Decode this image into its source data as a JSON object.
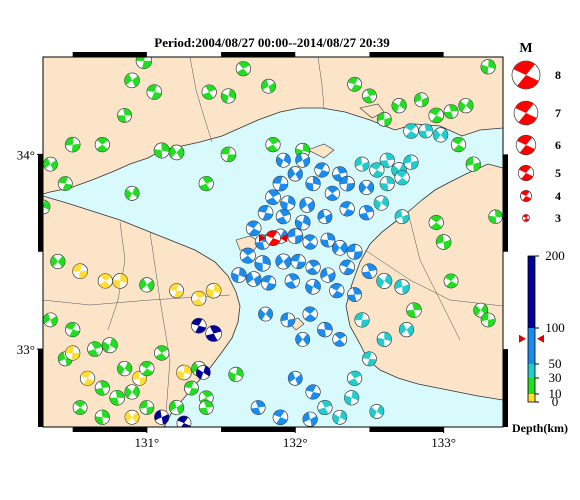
{
  "title": "Period:2004/08/27 00:00--2014/08/27 20:39",
  "map": {
    "lon_range": [
      130.3,
      133.4
    ],
    "lat_range": [
      32.6,
      34.5
    ],
    "x_ticks": [
      {
        "value": 131,
        "label": "131°"
      },
      {
        "value": 132,
        "label": "132°"
      },
      {
        "value": 133,
        "label": "133°"
      }
    ],
    "y_ticks": [
      {
        "value": 34,
        "label": "34°"
      },
      {
        "value": 33,
        "label": "33°"
      }
    ],
    "colors": {
      "land": "#fbe4c8",
      "sea": "#d8fafd",
      "coast": "#333333"
    },
    "selected_event": {
      "lon": 131.85,
      "lat": 33.57,
      "depth_km": 85,
      "magnitude": 6.1
    },
    "events": [
      [
        130.98,
        34.48,
        15,
        3.8
      ],
      [
        131.65,
        34.44,
        12,
        3.5
      ],
      [
        133.3,
        34.45,
        10,
        3.5
      ],
      [
        130.9,
        34.38,
        15,
        3.6
      ],
      [
        131.05,
        34.32,
        20,
        3.6
      ],
      [
        131.42,
        34.32,
        15,
        3.5
      ],
      [
        131.55,
        34.3,
        15,
        3.5
      ],
      [
        131.82,
        34.35,
        15,
        3.4
      ],
      [
        132.4,
        34.36,
        12,
        3.4
      ],
      [
        132.5,
        34.3,
        15,
        3.4
      ],
      [
        132.7,
        34.25,
        15,
        3.5
      ],
      [
        132.85,
        34.28,
        20,
        3.4
      ],
      [
        132.95,
        34.2,
        20,
        3.6
      ],
      [
        133.05,
        34.22,
        20,
        3.4
      ],
      [
        133.15,
        34.25,
        15,
        3.5
      ],
      [
        132.6,
        34.18,
        25,
        3.4
      ],
      [
        132.78,
        34.12,
        40,
        3.6
      ],
      [
        132.88,
        34.12,
        40,
        3.4
      ],
      [
        132.98,
        34.1,
        30,
        3.5
      ],
      [
        130.5,
        34.05,
        15,
        3.6
      ],
      [
        130.7,
        34.05,
        15,
        3.5
      ],
      [
        131.1,
        34.02,
        15,
        3.7
      ],
      [
        131.2,
        34.01,
        15,
        3.6
      ],
      [
        131.55,
        34.0,
        15,
        3.6
      ],
      [
        131.85,
        34.05,
        15,
        3.5
      ],
      [
        132.05,
        34.02,
        15,
        3.5
      ],
      [
        130.35,
        33.95,
        15,
        3.4
      ],
      [
        130.45,
        33.85,
        15,
        3.4
      ],
      [
        131.4,
        33.85,
        15,
        3.5
      ],
      [
        130.3,
        33.73,
        15,
        3.4
      ],
      [
        132.05,
        33.97,
        60,
        3.4
      ],
      [
        132.18,
        33.92,
        60,
        3.5
      ],
      [
        132.3,
        33.9,
        55,
        3.5
      ],
      [
        131.92,
        33.97,
        65,
        3.4
      ],
      [
        132.45,
        33.95,
        45,
        3.4
      ],
      [
        132.55,
        33.92,
        45,
        3.5
      ],
      [
        132.62,
        33.97,
        45,
        3.5
      ],
      [
        132.7,
        33.92,
        40,
        3.6
      ],
      [
        132.78,
        33.96,
        40,
        3.5
      ],
      [
        132.72,
        33.88,
        45,
        3.5
      ],
      [
        132.62,
        33.85,
        45,
        3.5
      ],
      [
        132.48,
        33.83,
        50,
        3.5
      ],
      [
        132.35,
        33.85,
        55,
        3.6
      ],
      [
        132.25,
        33.8,
        55,
        3.5
      ],
      [
        132.12,
        33.85,
        60,
        3.5
      ],
      [
        132.0,
        33.9,
        65,
        3.5
      ],
      [
        131.9,
        33.85,
        65,
        3.6
      ],
      [
        131.85,
        33.78,
        70,
        3.6
      ],
      [
        131.95,
        33.75,
        65,
        3.5
      ],
      [
        132.08,
        33.74,
        65,
        3.6
      ],
      [
        131.8,
        33.7,
        70,
        3.6
      ],
      [
        131.92,
        33.68,
        70,
        3.5
      ],
      [
        132.05,
        33.65,
        70,
        3.6
      ],
      [
        132.2,
        33.68,
        60,
        3.4
      ],
      [
        132.35,
        33.72,
        55,
        3.5
      ],
      [
        132.48,
        33.7,
        50,
        3.5
      ],
      [
        132.58,
        33.75,
        45,
        3.5
      ],
      [
        132.72,
        33.68,
        45,
        3.4
      ],
      [
        131.72,
        33.62,
        75,
        3.6
      ],
      [
        131.78,
        33.55,
        75,
        3.6
      ],
      [
        131.9,
        33.58,
        70,
        3.5
      ],
      [
        132.0,
        33.58,
        70,
        3.7
      ],
      [
        132.1,
        33.55,
        65,
        3.5
      ],
      [
        132.22,
        33.56,
        60,
        3.4
      ],
      [
        132.3,
        33.52,
        55,
        3.6
      ],
      [
        132.4,
        33.5,
        55,
        3.7
      ],
      [
        131.68,
        33.48,
        75,
        3.7
      ],
      [
        131.78,
        33.44,
        75,
        3.8
      ],
      [
        131.92,
        33.45,
        70,
        3.7
      ],
      [
        132.02,
        33.45,
        65,
        3.5
      ],
      [
        132.12,
        33.42,
        60,
        3.5
      ],
      [
        131.62,
        33.38,
        75,
        3.6
      ],
      [
        131.72,
        33.36,
        75,
        3.6
      ],
      [
        131.82,
        33.34,
        70,
        3.5
      ],
      [
        131.98,
        33.35,
        65,
        3.5
      ],
      [
        132.12,
        33.32,
        60,
        3.6
      ],
      [
        132.22,
        33.38,
        55,
        3.5
      ],
      [
        132.35,
        33.42,
        50,
        3.6
      ],
      [
        132.5,
        33.4,
        50,
        3.6
      ],
      [
        132.6,
        33.35,
        45,
        3.7
      ],
      [
        132.72,
        33.32,
        45,
        3.6
      ],
      [
        132.28,
        33.3,
        55,
        3.5
      ],
      [
        132.4,
        33.28,
        50,
        3.4
      ],
      [
        131.8,
        33.18,
        70,
        3.4
      ],
      [
        131.95,
        33.15,
        65,
        3.4
      ],
      [
        132.1,
        33.18,
        60,
        3.5
      ],
      [
        132.2,
        33.1,
        55,
        3.6
      ],
      [
        132.05,
        33.05,
        60,
        3.4
      ],
      [
        132.45,
        33.15,
        45,
        3.5
      ],
      [
        132.3,
        33.05,
        50,
        3.4
      ],
      [
        132.6,
        33.05,
        45,
        3.5
      ],
      [
        132.75,
        33.1,
        40,
        3.5
      ],
      [
        132.5,
        32.95,
        45,
        3.4
      ],
      [
        132.4,
        32.85,
        45,
        3.5
      ],
      [
        132.38,
        32.75,
        40,
        3.5
      ],
      [
        132.0,
        32.85,
        55,
        3.4
      ],
      [
        132.12,
        32.78,
        50,
        3.5
      ],
      [
        132.2,
        32.7,
        45,
        3.5
      ],
      [
        132.3,
        32.65,
        40,
        3.4
      ],
      [
        132.1,
        32.64,
        50,
        3.5
      ],
      [
        131.9,
        32.65,
        55,
        3.6
      ],
      [
        131.75,
        32.7,
        55,
        3.4
      ],
      [
        132.55,
        32.68,
        35,
        3.4
      ],
      [
        133.0,
        33.55,
        15,
        3.6
      ],
      [
        133.05,
        33.35,
        15,
        3.4
      ],
      [
        132.8,
        33.2,
        25,
        3.6
      ],
      [
        133.25,
        33.2,
        20,
        3.4
      ],
      [
        133.3,
        33.15,
        15,
        3.4
      ],
      [
        132.95,
        33.65,
        15,
        3.5
      ],
      [
        133.35,
        33.68,
        15,
        3.3
      ],
      [
        130.4,
        33.45,
        10,
        3.5
      ],
      [
        130.55,
        33.4,
        8,
        3.6
      ],
      [
        130.72,
        33.35,
        8,
        3.5
      ],
      [
        130.82,
        33.35,
        8,
        3.6
      ],
      [
        131.0,
        33.33,
        15,
        3.5
      ],
      [
        131.2,
        33.3,
        8,
        3.4
      ],
      [
        131.35,
        33.26,
        8,
        3.5
      ],
      [
        131.45,
        33.3,
        8,
        3.6
      ],
      [
        130.35,
        33.15,
        15,
        3.4
      ],
      [
        130.5,
        33.1,
        15,
        3.5
      ],
      [
        130.65,
        33.0,
        15,
        3.6
      ],
      [
        130.75,
        33.02,
        15,
        3.7
      ],
      [
        130.45,
        32.95,
        15,
        3.4
      ],
      [
        130.6,
        32.85,
        8,
        3.5
      ],
      [
        130.7,
        32.8,
        15,
        3.5
      ],
      [
        130.85,
        32.9,
        15,
        3.5
      ],
      [
        130.95,
        32.85,
        8,
        3.4
      ],
      [
        131.0,
        32.9,
        15,
        3.5
      ],
      [
        130.8,
        32.75,
        15,
        3.6
      ],
      [
        130.9,
        32.78,
        15,
        3.5
      ],
      [
        131.0,
        32.7,
        15,
        3.4
      ],
      [
        130.55,
        32.7,
        15,
        3.4
      ],
      [
        130.7,
        32.65,
        15,
        3.5
      ],
      [
        130.9,
        32.65,
        8,
        3.4
      ],
      [
        130.5,
        32.98,
        8,
        3.5
      ],
      [
        131.1,
        32.98,
        15,
        3.5
      ],
      [
        131.25,
        32.88,
        8,
        3.6
      ],
      [
        131.35,
        32.9,
        15,
        3.5
      ],
      [
        131.3,
        32.8,
        15,
        3.4
      ],
      [
        131.4,
        32.75,
        15,
        3.4
      ],
      [
        131.6,
        32.87,
        15,
        3.5
      ],
      [
        131.2,
        32.7,
        25,
        3.5
      ],
      [
        131.35,
        33.12,
        175,
        3.6
      ],
      [
        131.45,
        33.08,
        150,
        3.9
      ],
      [
        131.38,
        32.88,
        180,
        3.4
      ],
      [
        131.1,
        32.65,
        185,
        3.5
      ],
      [
        131.25,
        32.62,
        180,
        3.4
      ],
      [
        131.4,
        32.7,
        20,
        3.4
      ],
      [
        130.9,
        33.8,
        15,
        3.4
      ],
      [
        133.2,
        33.95,
        15,
        3.5
      ],
      [
        133.1,
        34.05,
        20,
        3.5
      ],
      [
        130.85,
        34.2,
        15,
        3.4
      ]
    ]
  },
  "legend": {
    "magnitude_title": "M",
    "magnitudes": [
      8,
      7,
      6,
      5,
      4,
      3
    ],
    "depth_title": "Depth(km)",
    "depth_ticks": [
      {
        "value": 200,
        "label": "200"
      },
      {
        "value": 100,
        "label": "100"
      },
      {
        "value": 50,
        "label": "50"
      },
      {
        "value": 30,
        "label": "30"
      },
      {
        "value": 10,
        "label": "10"
      },
      {
        "value": 0,
        "label": "0"
      }
    ],
    "depth_bands": [
      {
        "from": 0,
        "to": 10,
        "color": "#ffdd33"
      },
      {
        "from": 10,
        "to": 30,
        "color": "#22dd22"
      },
      {
        "from": 30,
        "to": 50,
        "color": "#22cccc"
      },
      {
        "from": 50,
        "to": 100,
        "color": "#1a8cf0"
      },
      {
        "from": 100,
        "to": 200,
        "color": "#000099"
      }
    ],
    "marker_depth_km": 85,
    "beachball_color": "#ff0000"
  }
}
